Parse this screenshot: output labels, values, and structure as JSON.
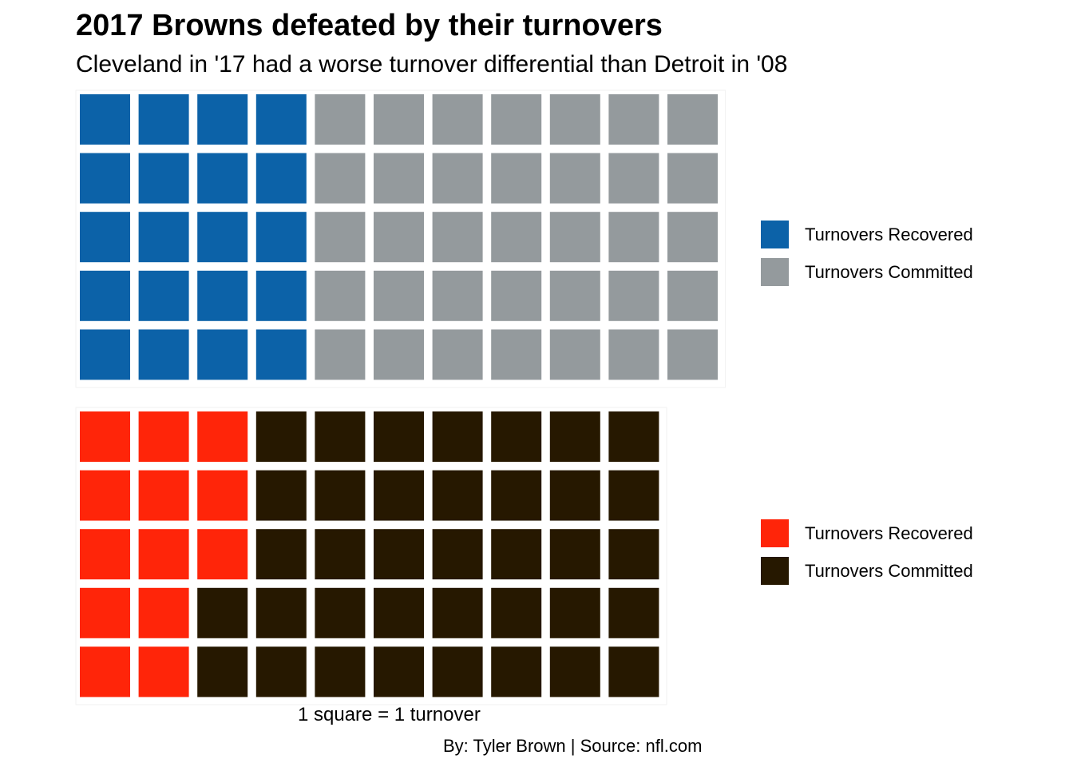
{
  "title": "2017 Browns defeated by their turnovers",
  "subtitle": "Cleveland in '17 had a worse turnover differential than Detroit in '08",
  "xlabel": "1 square = 1 turnover",
  "caption": "By: Tyler Brown | Source: nfl.com",
  "chart_data": [
    {
      "type": "waffle",
      "rows": 5,
      "units_per_square": 1,
      "series": [
        {
          "name": "Turnovers Recovered",
          "value": 20,
          "color": "#0C62A8"
        },
        {
          "name": "Turnovers Committed",
          "value": 35,
          "color": "#949A9D"
        }
      ],
      "legend_position": "right"
    },
    {
      "type": "waffle",
      "rows": 5,
      "units_per_square": 1,
      "series": [
        {
          "name": "Turnovers Recovered",
          "value": 13,
          "color": "#FF2509"
        },
        {
          "name": "Turnovers Committed",
          "value": 37,
          "color": "#261800"
        }
      ],
      "legend_position": "right"
    }
  ]
}
